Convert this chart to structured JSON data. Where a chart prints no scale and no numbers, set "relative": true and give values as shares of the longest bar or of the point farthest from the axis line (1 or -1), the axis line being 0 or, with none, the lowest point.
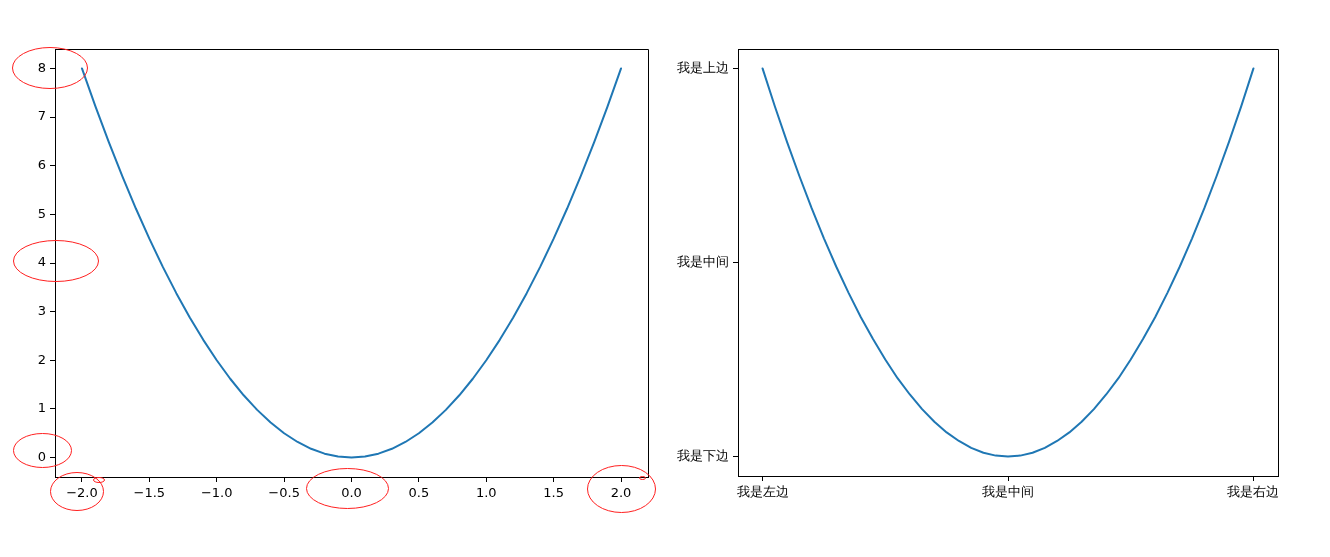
{
  "chart_data": [
    {
      "type": "line",
      "x": [
        -2,
        -1.9,
        -1.8,
        -1.7,
        -1.6,
        -1.5,
        -1.4,
        -1.3,
        -1.2,
        -1.1,
        -1,
        -0.9,
        -0.8,
        -0.7,
        -0.6,
        -0.5,
        -0.4,
        -0.3,
        -0.2,
        -0.1,
        0,
        0.1,
        0.2,
        0.3,
        0.4,
        0.5,
        0.6,
        0.7,
        0.8,
        0.9,
        1,
        1.1,
        1.2,
        1.3,
        1.4,
        1.5,
        1.6,
        1.7,
        1.8,
        1.9,
        2
      ],
      "values": [
        8,
        7.22,
        6.48,
        5.78,
        5.12,
        4.5,
        3.92,
        3.38,
        2.88,
        2.42,
        2,
        1.62,
        1.28,
        0.98,
        0.72,
        0.5,
        0.32,
        0.18,
        0.08,
        0.02,
        0,
        0.02,
        0.08,
        0.18,
        0.32,
        0.5,
        0.72,
        0.98,
        1.28,
        1.62,
        2,
        2.42,
        2.88,
        3.38,
        3.92,
        4.5,
        5.12,
        5.78,
        6.48,
        7.22,
        8
      ],
      "color": "#1f77b4",
      "xlim": [
        -2.2,
        2.2
      ],
      "ylim": [
        -0.4,
        8.4
      ],
      "xticks": [
        {
          "value": -2,
          "label": "−2.0"
        },
        {
          "value": -1.5,
          "label": "−1.5"
        },
        {
          "value": -1,
          "label": "−1.0"
        },
        {
          "value": -0.5,
          "label": "−0.5"
        },
        {
          "value": 0,
          "label": "0.0"
        },
        0.5,
        {
          "value": 1,
          "label": "1.0"
        },
        1.5,
        {
          "value": 2,
          "label": "2.0"
        }
      ],
      "yticks": [
        0,
        1,
        2,
        3,
        4,
        5,
        6,
        7,
        8
      ]
    },
    {
      "type": "line",
      "relative": true,
      "categories": [
        "我是左边",
        null,
        null,
        null,
        null,
        null,
        null,
        null,
        null,
        null,
        null,
        null,
        null,
        null,
        null,
        null,
        null,
        null,
        null,
        null,
        "我是中间",
        null,
        null,
        null,
        null,
        null,
        null,
        null,
        null,
        null,
        null,
        null,
        null,
        null,
        null,
        null,
        null,
        null,
        null,
        null,
        "我是右边"
      ],
      "values": [
        1,
        0.907,
        0.819,
        0.736,
        0.657,
        0.583,
        0.514,
        0.45,
        0.39,
        0.336,
        0.286,
        0.24,
        0.2,
        0.164,
        0.133,
        0.107,
        0.086,
        0.069,
        0.057,
        0.05,
        0.048,
        0.05,
        0.057,
        0.069,
        0.086,
        0.107,
        0.133,
        0.164,
        0.2,
        0.24,
        0.286,
        0.336,
        0.39,
        0.45,
        0.514,
        0.583,
        0.657,
        0.736,
        0.819,
        0.907,
        1
      ],
      "color": "#1f77b4",
      "annotations": [
        "我是下边",
        "我是中间",
        "我是上边"
      ]
    }
  ]
}
